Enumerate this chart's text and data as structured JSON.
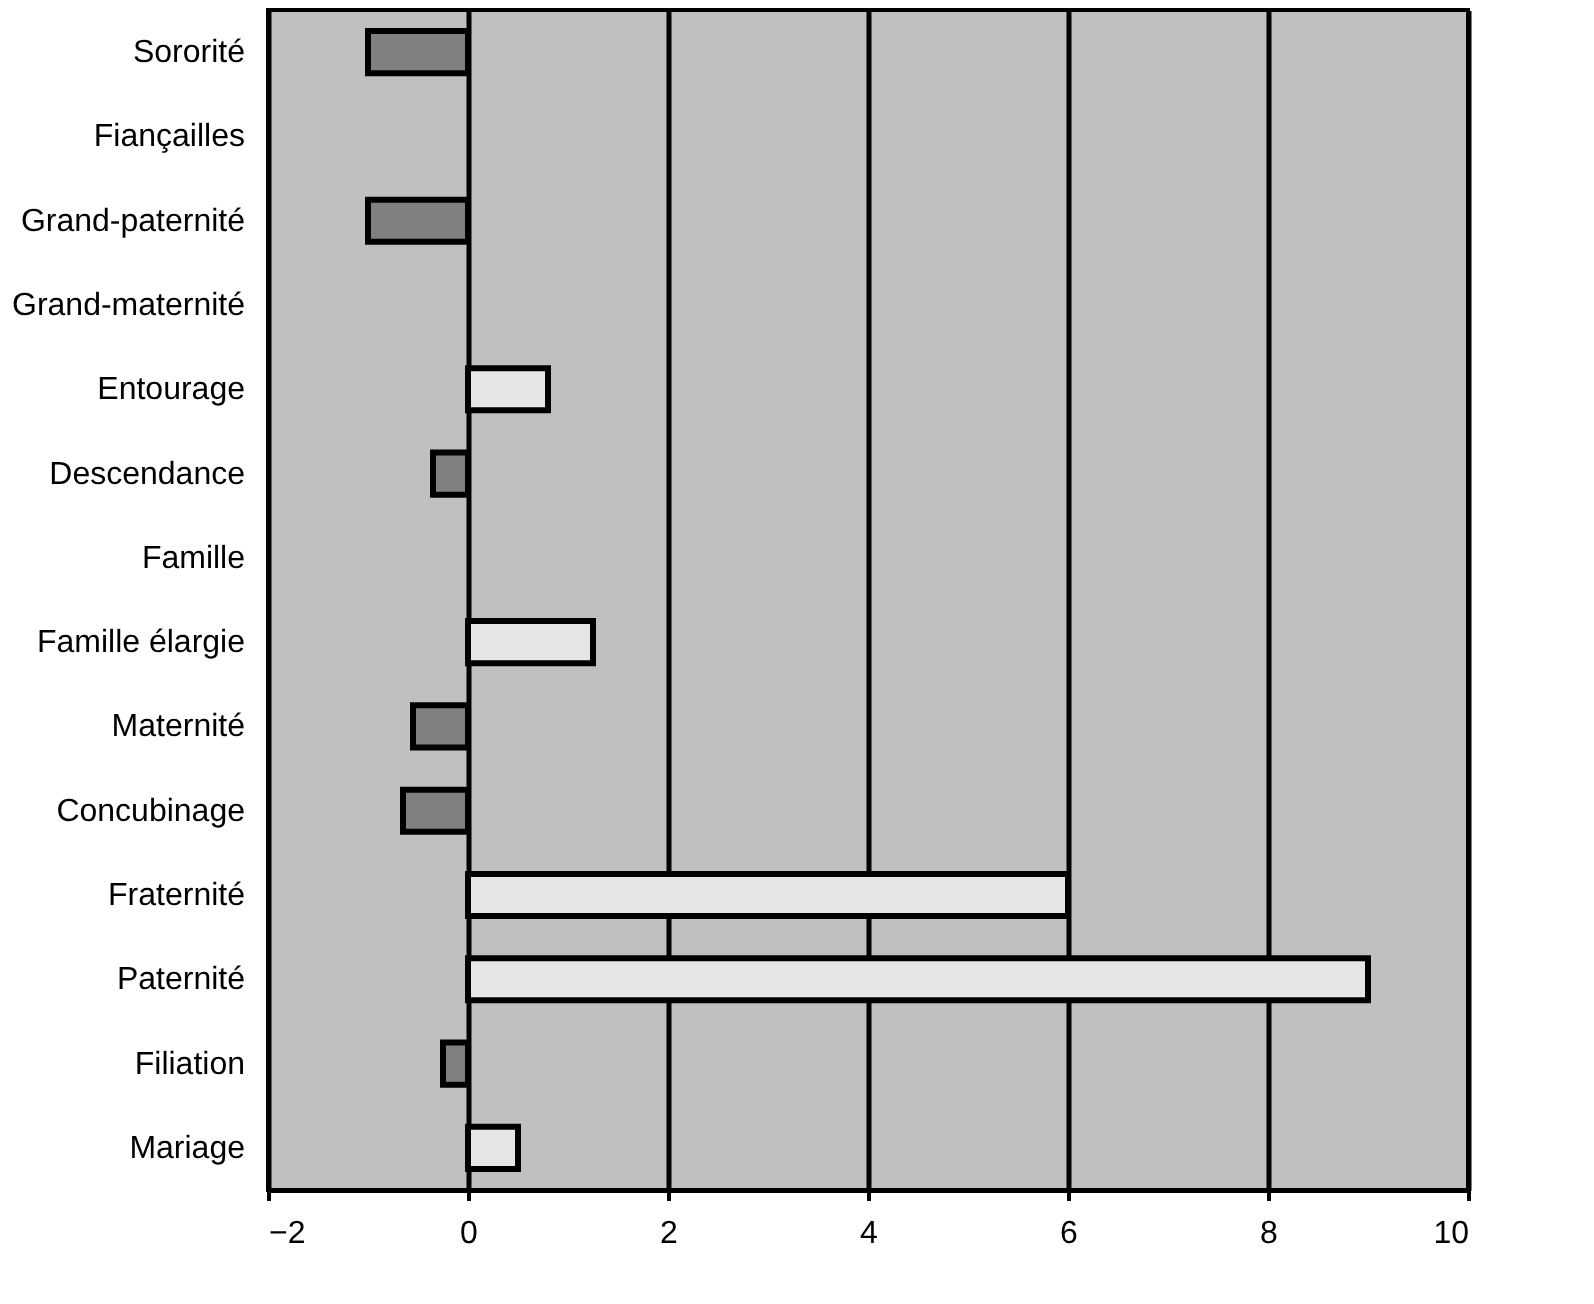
{
  "chart_data": {
    "type": "bar",
    "orientation": "horizontal",
    "categories": [
      "Sororité",
      "Fiançailles",
      "Grand-paternité",
      "Grand-maternité",
      "Entourage",
      "Descendance",
      "Famille",
      "Famille élargie",
      "Maternité",
      "Concubinage",
      "Fraternité",
      "Paternité",
      "Filiation",
      "Mariage"
    ],
    "values": [
      -1,
      null,
      -1,
      null,
      0.8,
      -0.35,
      null,
      1.25,
      -0.55,
      -0.65,
      6,
      9,
      -0.25,
      0.5
    ],
    "colors": [
      "#808080",
      "#808080",
      "#808080",
      "#808080",
      "#e6e6e6",
      "#808080",
      "#808080",
      "#e6e6e6",
      "#808080",
      "#808080",
      "#e6e6e6",
      "#e6e6e6",
      "#808080",
      "#e6e6e6"
    ],
    "xlim": [
      -2,
      10
    ],
    "xticks": [
      -2,
      0,
      2,
      4,
      6,
      8,
      10
    ],
    "grid": "x"
  }
}
